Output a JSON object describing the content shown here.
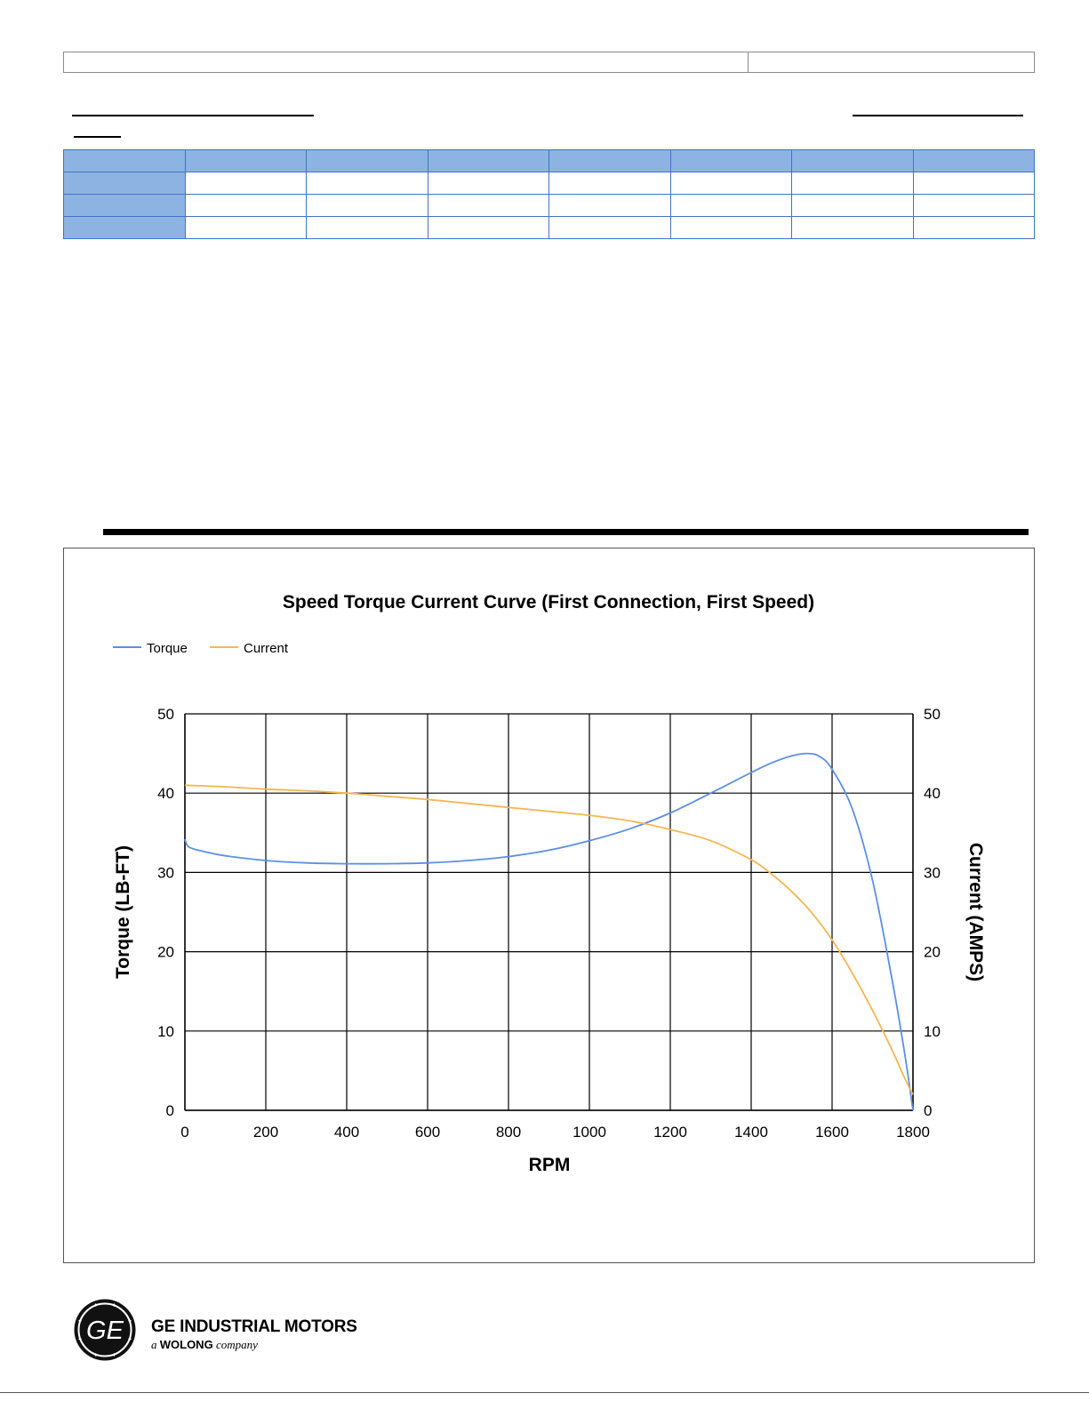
{
  "header_table": {
    "rows": 4,
    "cols": 8
  },
  "chart_data": {
    "type": "line",
    "title": "Speed Torque Current Curve (First Connection, First Speed)",
    "xlabel": "RPM",
    "ylabel": "Torque (LB-FT)",
    "y2label": "Current (AMPS)",
    "xlim": [
      0,
      1800
    ],
    "ylim": [
      0,
      50
    ],
    "y2lim": [
      0,
      50
    ],
    "xticks": [
      0,
      200,
      400,
      600,
      800,
      1000,
      1200,
      1400,
      1600,
      1800
    ],
    "yticks": [
      0,
      10,
      20,
      30,
      40,
      50
    ],
    "grid": true,
    "legend_position": "top-left",
    "series": [
      {
        "name": "Torque",
        "axis": "left",
        "color": "#5b8fe6",
        "x": [
          0,
          10,
          50,
          100,
          200,
          300,
          400,
          500,
          600,
          700,
          800,
          900,
          1000,
          1100,
          1200,
          1300,
          1400,
          1450,
          1500,
          1540,
          1570,
          1600,
          1650,
          1700,
          1750,
          1780,
          1800
        ],
        "y": [
          34.2,
          33.2,
          32.6,
          32.1,
          31.5,
          31.2,
          31.1,
          31.1,
          31.2,
          31.5,
          32.0,
          32.8,
          34.0,
          35.5,
          37.5,
          40.0,
          42.6,
          43.8,
          44.7,
          45.0,
          44.6,
          43.0,
          38.0,
          29.0,
          16.0,
          7.0,
          0.0
        ]
      },
      {
        "name": "Current",
        "axis": "right",
        "color": "#f5b553",
        "x": [
          0,
          100,
          200,
          300,
          400,
          500,
          600,
          700,
          800,
          900,
          1000,
          1100,
          1200,
          1300,
          1400,
          1450,
          1500,
          1550,
          1600,
          1650,
          1700,
          1750,
          1780,
          1800
        ],
        "y": [
          41.0,
          40.8,
          40.5,
          40.3,
          40.0,
          39.6,
          39.2,
          38.7,
          38.2,
          37.7,
          37.2,
          36.5,
          35.4,
          34.0,
          31.6,
          29.8,
          27.6,
          24.9,
          21.5,
          17.3,
          12.6,
          7.4,
          4.0,
          2.0
        ]
      }
    ]
  },
  "brand": {
    "name": "GE INDUSTRIAL MOTORS",
    "sub_prefix": "a",
    "sub_brand": "WOLONG",
    "sub_suffix": "company",
    "logo_text": "GE"
  }
}
